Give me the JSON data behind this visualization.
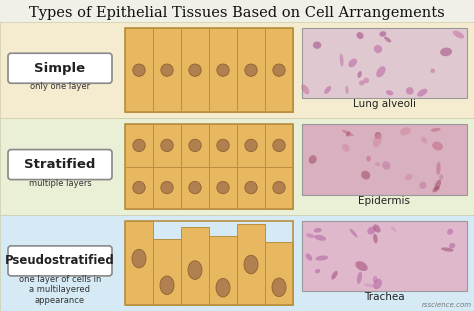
{
  "title": "Types of Epithelial Tissues Based on Cell Arrangements",
  "title_fontsize": 10.5,
  "bg_color": "#f0efe8",
  "row_colors": [
    "#f5ecd0",
    "#eaf0d5",
    "#d5eaf5"
  ],
  "rows": [
    {
      "label": "Simple",
      "sublabel": "only one layer",
      "photo_label": "Lung alveoli",
      "cell_type": "simple",
      "cell_rows": 1,
      "cell_cols": 6
    },
    {
      "label": "Stratified",
      "sublabel": "multiple layers",
      "photo_label": "Epidermis",
      "cell_type": "stratified",
      "cell_rows": 2,
      "cell_cols": 6
    },
    {
      "label": "Pseudostratified",
      "sublabel": "one layer of cells in\na multilayered\nappearance",
      "photo_label": "Trachea",
      "cell_type": "pseudo",
      "cell_rows": 1,
      "cell_cols": 6
    }
  ],
  "cell_fill": "#e8b860",
  "cell_fill_light": "#f5d898",
  "cell_edge": "#b89040",
  "nucleus_color": "#b08050",
  "nucleus_edge": "#906030",
  "photo_colors": [
    "#e0c8d0",
    "#d8b0c0",
    "#e0b8cc"
  ],
  "photo_detail_colors": [
    [
      "#c070a0",
      "#d090b8",
      "#a04880",
      "#b860a0"
    ],
    [
      "#c06880",
      "#d088a0",
      "#a04860",
      "#c078a0"
    ],
    [
      "#c070b0",
      "#b060a0",
      "#a04878",
      "#d090c0"
    ]
  ],
  "watermark": "rsscience.com"
}
